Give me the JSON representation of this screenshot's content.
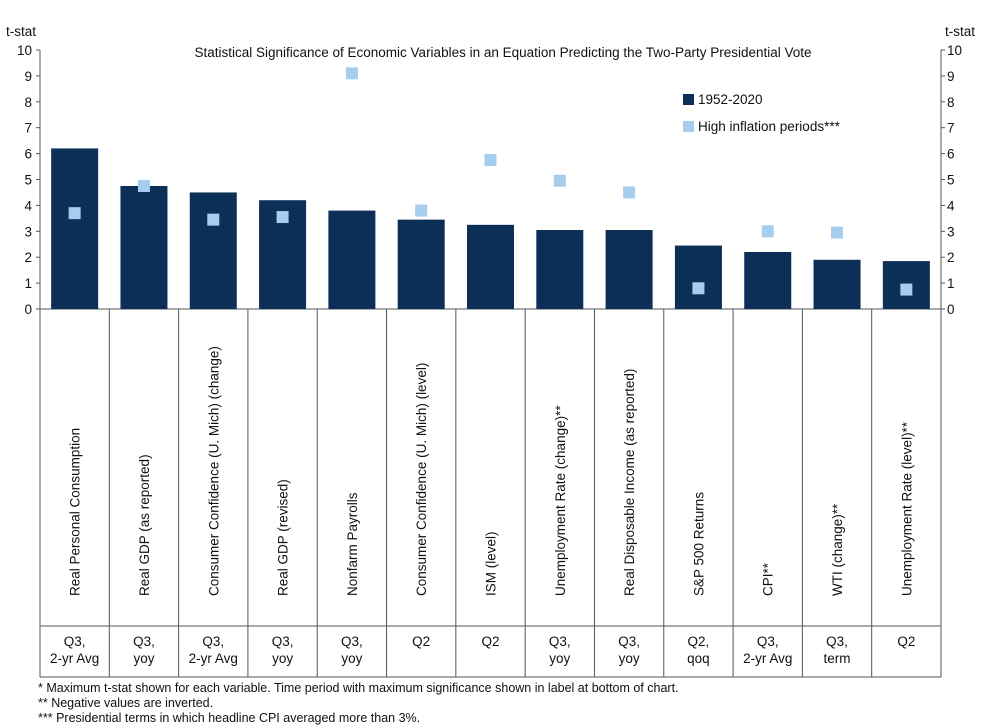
{
  "chart_data": {
    "type": "bar",
    "title": "Statistical Significance of Economic Variables in an Equation Predicting the Two-Party Presidential Vote",
    "ylabel_left": "t-stat",
    "ylabel_right": "t-stat",
    "ylim": [
      0,
      10
    ],
    "yticks": [
      "0",
      "1",
      "2",
      "3",
      "4",
      "5",
      "6",
      "7",
      "8",
      "9",
      "10"
    ],
    "legend_position": "top-right",
    "categories": [
      "Real Personal Consumption",
      "Real GDP (as reported)",
      "Consumer Confidence (U. Mich) (change)",
      "Real GDP (revised)",
      "Nonfarm Payrolls",
      "Consumer Confidence (U. Mich) (level)",
      "ISM (level)",
      "Unemployment Rate (change)**",
      "Real Disposable Income (as reported)",
      "S&P 500 Returns",
      "CPI**",
      "WTI (change)**",
      "Unemployment Rate (level)**"
    ],
    "periods": [
      [
        "Q3,",
        "2-yr Avg"
      ],
      [
        "Q3,",
        "yoy"
      ],
      [
        "Q3,",
        "2-yr Avg"
      ],
      [
        "Q3,",
        "yoy"
      ],
      [
        "Q3,",
        "yoy"
      ],
      [
        "Q2"
      ],
      [
        "Q2"
      ],
      [
        "Q3,",
        "yoy"
      ],
      [
        "Q3,",
        "yoy"
      ],
      [
        "Q2,",
        "qoq"
      ],
      [
        "Q3,",
        "2-yr Avg"
      ],
      [
        "Q3,",
        "term"
      ],
      [
        "Q2"
      ]
    ],
    "series": [
      {
        "name": "1952-2020",
        "kind": "bar",
        "color": "#0c2f57",
        "values": [
          6.2,
          4.75,
          4.5,
          4.2,
          3.8,
          3.45,
          3.25,
          3.05,
          3.05,
          2.45,
          2.2,
          1.9,
          1.85
        ]
      },
      {
        "name": "High inflation periods***",
        "kind": "marker",
        "color": "#a6cdee",
        "values": [
          3.7,
          4.75,
          3.45,
          3.55,
          9.1,
          3.8,
          5.75,
          4.95,
          4.5,
          0.8,
          3.0,
          2.95,
          0.75
        ]
      }
    ]
  },
  "footnotes": [
    "* Maximum t-stat shown for each variable.  Time period with maximum significance shown in label at bottom of chart.",
    "** Negative values are inverted.",
    "*** Presidential terms in which headline CPI averaged more than 3%."
  ]
}
